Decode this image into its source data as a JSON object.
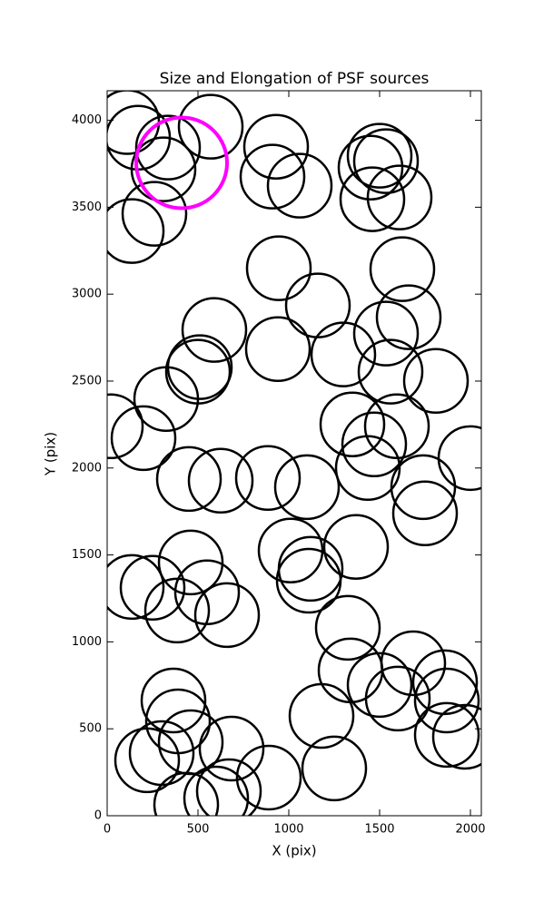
{
  "chart_data": {
    "type": "scatter",
    "title": "Size and Elongation of PSF sources",
    "x_label": "X (pix)",
    "y_label": "Y (pix)",
    "xlim": [
      0,
      2060
    ],
    "ylim": [
      0,
      4170
    ],
    "xticks": [
      0,
      500,
      1000,
      1500,
      2000
    ],
    "yticks": [
      0,
      500,
      1000,
      1500,
      2000,
      2500,
      3000,
      3500,
      4000
    ],
    "series": [
      {
        "color": "#000000",
        "size": 350,
        "x": [
          110,
          170,
          335,
          310,
          570,
          930,
          910,
          1060,
          1500,
          1535,
          1450,
          1460,
          1610,
          260,
          135,
          945,
          1625,
          1160,
          1660,
          1535,
          590,
          940,
          1300,
          510,
          500,
          1560,
          1810,
          325,
          20,
          200,
          1350,
          1595,
          1470,
          1435,
          1740,
          1750,
          2000,
          450,
          625,
          885,
          1100,
          1010,
          1370,
          1120,
          1110,
          460,
          135,
          250,
          550,
          385,
          660,
          1325,
          1340,
          1685,
          1860,
          1500,
          1600,
          1870,
          1870,
          1970,
          365,
          390,
          460,
          685,
          300,
          220,
          890,
          1180,
          1250,
          435,
          600,
          670
        ],
        "y": [
          3990,
          3900,
          3843,
          3718,
          3963,
          3848,
          3676,
          3624,
          3796,
          3765,
          3728,
          3546,
          3556,
          3462,
          3363,
          3149,
          3144,
          2935,
          2867,
          2773,
          2794,
          2684,
          2653,
          2580,
          2554,
          2554,
          2501,
          2397,
          2240,
          2172,
          2251,
          2240,
          2136,
          2000,
          1890,
          1739,
          2057,
          1937,
          1927,
          1943,
          1890,
          1525,
          1546,
          1420,
          1352,
          1457,
          1316,
          1311,
          1285,
          1180,
          1154,
          1081,
          836,
          877,
          768,
          752,
          674,
          663,
          465,
          454,
          663,
          543,
          423,
          386,
          360,
          319,
          219,
          574,
          272,
          63,
          99,
          141
        ]
      },
      {
        "color": "#ff00ff",
        "size": 500,
        "x": [
          410
        ],
        "y": [
          3755
        ]
      }
    ]
  }
}
